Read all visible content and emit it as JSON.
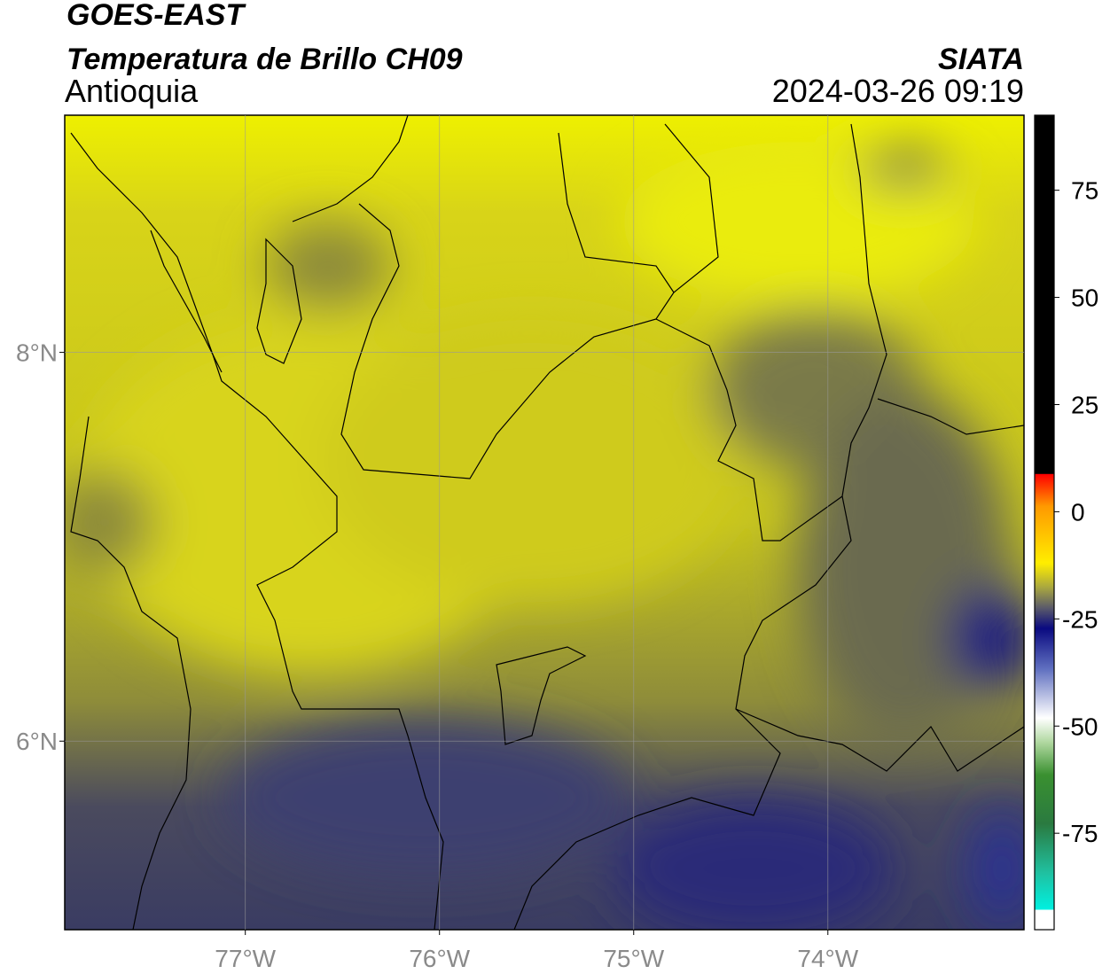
{
  "header": {
    "title": "GOES-EAST",
    "subtitle": "Temperatura de Brillo CH09",
    "region": "Antioquia",
    "source": "SIATA",
    "datetime": "2024-03-26 09:19"
  },
  "map": {
    "lon_range": [
      -77.93,
      -72.99
    ],
    "lat_range": [
      5.03,
      9.22
    ],
    "lon_ticks": [
      {
        "value": -77,
        "label": "77°W"
      },
      {
        "value": -76,
        "label": "76°W"
      },
      {
        "value": -75,
        "label": "75°W"
      },
      {
        "value": -74,
        "label": "74°W"
      }
    ],
    "lat_ticks": [
      {
        "value": 8,
        "label": "8°N"
      },
      {
        "value": 6,
        "label": "6°N"
      }
    ]
  },
  "colorbar": {
    "range": [
      -97.5,
      92.5
    ],
    "ticks": [
      75,
      50,
      25,
      0,
      -25,
      -50,
      -75
    ]
  }
}
